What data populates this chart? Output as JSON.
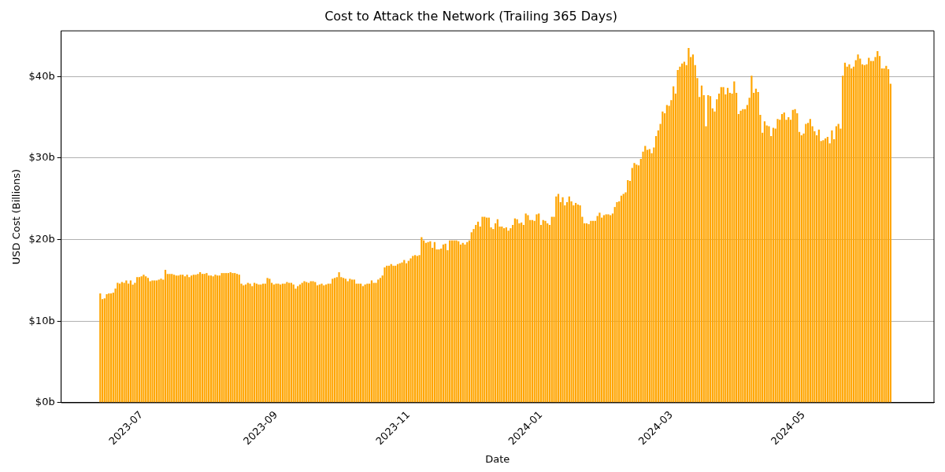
{
  "chart_data": {
    "type": "bar",
    "title": "Cost to Attack the Network (Trailing 365 Days)",
    "xlabel": "Date",
    "ylabel": "USD Cost (Billions)",
    "color": "#ffa500",
    "grid": "y",
    "legend": false,
    "x": [
      "2023-06-12",
      "2023-06-13",
      "2023-06-14",
      "2023-06-15",
      "2023-06-16",
      "2023-06-17",
      "2023-06-18",
      "2023-06-19",
      "2023-06-20",
      "2023-06-21",
      "2023-06-22",
      "2023-06-23",
      "2023-06-24",
      "2023-06-25",
      "2023-06-26",
      "2023-06-27",
      "2023-06-28",
      "2023-06-29",
      "2023-06-30",
      "2023-07-01",
      "2023-07-02",
      "2023-07-03",
      "2023-07-04",
      "2023-07-05",
      "2023-07-06",
      "2023-07-07",
      "2023-07-08",
      "2023-07-09",
      "2023-07-10",
      "2023-07-11",
      "2023-07-12",
      "2023-07-13",
      "2023-07-14",
      "2023-07-15",
      "2023-07-16",
      "2023-07-17",
      "2023-07-18",
      "2023-07-19",
      "2023-07-20",
      "2023-07-21",
      "2023-07-22",
      "2023-07-23",
      "2023-07-24",
      "2023-07-25",
      "2023-07-26",
      "2023-07-27",
      "2023-07-28",
      "2023-07-29",
      "2023-07-30",
      "2023-07-31",
      "2023-08-01",
      "2023-08-02",
      "2023-08-03",
      "2023-08-04",
      "2023-08-05",
      "2023-08-06",
      "2023-08-07",
      "2023-08-08",
      "2023-08-09",
      "2023-08-10",
      "2023-08-11",
      "2023-08-12",
      "2023-08-13",
      "2023-08-14",
      "2023-08-15",
      "2023-08-16",
      "2023-08-17",
      "2023-08-18",
      "2023-08-19",
      "2023-08-20",
      "2023-08-21",
      "2023-08-22",
      "2023-08-23",
      "2023-08-24",
      "2023-08-25",
      "2023-08-26",
      "2023-08-27",
      "2023-08-28",
      "2023-08-29",
      "2023-08-30",
      "2023-08-31",
      "2023-09-01",
      "2023-09-02",
      "2023-09-03",
      "2023-09-04",
      "2023-09-05",
      "2023-09-06",
      "2023-09-07",
      "2023-09-08",
      "2023-09-09",
      "2023-09-10",
      "2023-09-11",
      "2023-09-12",
      "2023-09-13",
      "2023-09-14",
      "2023-09-15",
      "2023-09-16",
      "2023-09-17",
      "2023-09-18",
      "2023-09-19",
      "2023-09-20",
      "2023-09-21",
      "2023-09-22",
      "2023-09-23",
      "2023-09-24",
      "2023-09-25",
      "2023-09-26",
      "2023-09-27",
      "2023-09-28",
      "2023-09-29",
      "2023-09-30",
      "2023-10-01",
      "2023-10-02",
      "2023-10-03",
      "2023-10-04",
      "2023-10-05",
      "2023-10-06",
      "2023-10-07",
      "2023-10-08",
      "2023-10-09",
      "2023-10-10",
      "2023-10-11",
      "2023-10-12",
      "2023-10-13",
      "2023-10-14",
      "2023-10-15",
      "2023-10-16",
      "2023-10-17",
      "2023-10-18",
      "2023-10-19",
      "2023-10-20",
      "2023-10-21",
      "2023-10-22",
      "2023-10-23",
      "2023-10-24",
      "2023-10-25",
      "2023-10-26",
      "2023-10-27",
      "2023-10-28",
      "2023-10-29",
      "2023-10-30",
      "2023-10-31",
      "2023-11-01",
      "2023-11-02",
      "2023-11-03",
      "2023-11-04",
      "2023-11-05",
      "2023-11-06",
      "2023-11-07",
      "2023-11-08",
      "2023-11-09",
      "2023-11-10",
      "2023-11-11",
      "2023-11-12",
      "2023-11-13",
      "2023-11-14",
      "2023-11-15",
      "2023-11-16",
      "2023-11-17",
      "2023-11-18",
      "2023-11-19",
      "2023-11-20",
      "2023-11-21",
      "2023-11-22",
      "2023-11-23",
      "2023-11-24",
      "2023-11-25",
      "2023-11-26",
      "2023-11-27",
      "2023-11-28",
      "2023-11-29",
      "2023-11-30",
      "2023-12-01",
      "2023-12-02",
      "2023-12-03",
      "2023-12-04",
      "2023-12-05",
      "2023-12-06",
      "2023-12-07",
      "2023-12-08",
      "2023-12-09",
      "2023-12-10",
      "2023-12-11",
      "2023-12-12",
      "2023-12-13",
      "2023-12-14",
      "2023-12-15",
      "2023-12-16",
      "2023-12-17",
      "2023-12-18",
      "2023-12-19",
      "2023-12-20",
      "2023-12-21",
      "2023-12-22",
      "2023-12-23",
      "2023-12-24",
      "2023-12-25",
      "2023-12-26",
      "2023-12-27",
      "2023-12-28",
      "2023-12-29",
      "2023-12-30",
      "2023-12-31",
      "2024-01-01",
      "2024-01-02",
      "2024-01-03",
      "2024-01-04",
      "2024-01-05",
      "2024-01-06",
      "2024-01-07",
      "2024-01-08",
      "2024-01-09",
      "2024-01-10",
      "2024-01-11",
      "2024-01-12",
      "2024-01-13",
      "2024-01-14",
      "2024-01-15",
      "2024-01-16",
      "2024-01-17",
      "2024-01-18",
      "2024-01-19",
      "2024-01-20",
      "2024-01-21",
      "2024-01-22",
      "2024-01-23",
      "2024-01-24",
      "2024-01-25",
      "2024-01-26",
      "2024-01-27",
      "2024-01-28",
      "2024-01-29",
      "2024-01-30",
      "2024-01-31",
      "2024-02-01",
      "2024-02-02",
      "2024-02-03",
      "2024-02-04",
      "2024-02-05",
      "2024-02-06",
      "2024-02-07",
      "2024-02-08",
      "2024-02-09",
      "2024-02-10",
      "2024-02-11",
      "2024-02-12",
      "2024-02-13",
      "2024-02-14",
      "2024-02-15",
      "2024-02-16",
      "2024-02-17",
      "2024-02-18",
      "2024-02-19",
      "2024-02-20",
      "2024-02-21",
      "2024-02-22",
      "2024-02-23",
      "2024-02-24",
      "2024-02-25",
      "2024-02-26",
      "2024-02-27",
      "2024-02-28",
      "2024-02-29",
      "2024-03-01",
      "2024-03-02",
      "2024-03-03",
      "2024-03-04",
      "2024-03-05",
      "2024-03-06",
      "2024-03-07",
      "2024-03-08",
      "2024-03-09",
      "2024-03-10",
      "2024-03-11",
      "2024-03-12",
      "2024-03-13",
      "2024-03-14",
      "2024-03-15",
      "2024-03-16",
      "2024-03-17",
      "2024-03-18",
      "2024-03-19",
      "2024-03-20",
      "2024-03-21",
      "2024-03-22",
      "2024-03-23",
      "2024-03-24",
      "2024-03-25",
      "2024-03-26",
      "2024-03-27",
      "2024-03-28",
      "2024-03-29",
      "2024-03-30",
      "2024-03-31",
      "2024-04-01",
      "2024-04-02",
      "2024-04-03",
      "2024-04-04",
      "2024-04-05",
      "2024-04-06",
      "2024-04-07",
      "2024-04-08",
      "2024-04-09",
      "2024-04-10",
      "2024-04-11",
      "2024-04-12",
      "2024-04-13",
      "2024-04-14",
      "2024-04-15",
      "2024-04-16",
      "2024-04-17",
      "2024-04-18",
      "2024-04-19",
      "2024-04-20",
      "2024-04-21",
      "2024-04-22",
      "2024-04-23",
      "2024-04-24",
      "2024-04-25",
      "2024-04-26",
      "2024-04-27",
      "2024-04-28",
      "2024-04-29",
      "2024-04-30",
      "2024-05-01",
      "2024-05-02",
      "2024-05-03",
      "2024-05-04",
      "2024-05-05",
      "2024-05-06",
      "2024-05-07",
      "2024-05-08",
      "2024-05-09",
      "2024-05-10",
      "2024-05-11",
      "2024-05-12",
      "2024-05-13",
      "2024-05-14",
      "2024-05-15",
      "2024-05-16",
      "2024-05-17",
      "2024-05-18",
      "2024-05-19",
      "2024-05-20",
      "2024-05-21",
      "2024-05-22",
      "2024-05-23",
      "2024-05-24",
      "2024-05-25",
      "2024-05-26",
      "2024-05-27",
      "2024-05-28",
      "2024-05-29",
      "2024-05-30",
      "2024-05-31",
      "2024-06-01",
      "2024-06-02",
      "2024-06-03",
      "2024-06-04",
      "2024-06-05",
      "2024-06-06",
      "2024-06-07",
      "2024-06-08",
      "2024-06-09",
      "2024-06-10"
    ],
    "values": [
      13.4,
      12.7,
      12.8,
      13.3,
      13.4,
      13.4,
      13.5,
      14.0,
      14.7,
      14.6,
      14.8,
      14.7,
      15.0,
      14.6,
      15.0,
      14.5,
      14.7,
      15.4,
      15.4,
      15.5,
      15.7,
      15.5,
      15.3,
      14.9,
      15.0,
      15.0,
      15.0,
      15.1,
      15.2,
      15.1,
      16.3,
      15.8,
      15.8,
      15.8,
      15.7,
      15.6,
      15.6,
      15.7,
      15.7,
      15.5,
      15.7,
      15.4,
      15.6,
      15.7,
      15.7,
      15.8,
      16.0,
      15.8,
      15.8,
      15.9,
      15.6,
      15.6,
      15.5,
      15.7,
      15.6,
      15.6,
      15.9,
      15.9,
      15.9,
      15.9,
      16.0,
      15.9,
      15.9,
      15.8,
      15.7,
      14.6,
      14.4,
      14.5,
      14.7,
      14.6,
      14.3,
      14.7,
      14.6,
      14.5,
      14.5,
      14.6,
      14.6,
      15.3,
      15.2,
      14.7,
      14.5,
      14.6,
      14.6,
      14.5,
      14.6,
      14.6,
      14.8,
      14.7,
      14.7,
      14.5,
      14.0,
      14.3,
      14.5,
      14.7,
      14.9,
      14.8,
      14.7,
      14.9,
      14.9,
      14.8,
      14.4,
      14.5,
      14.6,
      14.4,
      14.5,
      14.6,
      14.6,
      15.2,
      15.3,
      15.4,
      16.0,
      15.4,
      15.3,
      15.2,
      14.9,
      15.2,
      15.1,
      15.1,
      14.6,
      14.6,
      14.6,
      14.3,
      14.5,
      14.6,
      14.6,
      15.0,
      14.7,
      14.7,
      15.1,
      15.3,
      15.6,
      16.6,
      16.8,
      16.8,
      17.0,
      16.8,
      16.8,
      17.0,
      17.1,
      17.2,
      17.5,
      17.1,
      17.4,
      17.7,
      18.0,
      18.1,
      18.0,
      18.1,
      20.3,
      19.9,
      19.6,
      19.7,
      19.8,
      19.0,
      19.7,
      18.8,
      18.8,
      18.9,
      19.4,
      19.5,
      18.7,
      19.9,
      19.9,
      19.9,
      19.9,
      19.8,
      19.4,
      19.6,
      19.4,
      19.7,
      19.9,
      20.9,
      21.3,
      21.8,
      22.2,
      21.6,
      22.8,
      22.8,
      22.7,
      22.7,
      21.5,
      21.3,
      22.0,
      22.5,
      21.6,
      21.6,
      21.4,
      21.5,
      21.1,
      21.4,
      21.8,
      22.6,
      22.5,
      22.0,
      22.1,
      21.8,
      23.2,
      23.0,
      22.4,
      22.4,
      22.3,
      23.1,
      23.2,
      21.8,
      22.4,
      22.3,
      22.0,
      21.8,
      22.8,
      22.8,
      25.3,
      25.6,
      24.6,
      25.2,
      24.2,
      24.6,
      25.3,
      24.7,
      24.2,
      24.5,
      24.3,
      24.2,
      22.8,
      22.0,
      22.0,
      21.9,
      22.3,
      22.3,
      22.3,
      22.9,
      23.3,
      22.7,
      23.0,
      23.1,
      23.1,
      23.0,
      23.2,
      24.0,
      24.6,
      24.7,
      25.4,
      25.6,
      25.8,
      27.3,
      27.2,
      28.8,
      29.4,
      29.2,
      29.1,
      29.9,
      30.8,
      31.5,
      31.0,
      31.1,
      30.6,
      31.3,
      32.7,
      33.4,
      34.2,
      35.7,
      35.5,
      36.5,
      36.4,
      37.1,
      38.8,
      37.9,
      40.8,
      41.2,
      41.6,
      41.8,
      41.4,
      43.5,
      42.4,
      42.7,
      41.4,
      39.8,
      37.5,
      38.9,
      37.7,
      33.9,
      37.7,
      37.6,
      36.1,
      35.7,
      37.2,
      37.9,
      38.7,
      38.7,
      37.8,
      38.6,
      38.0,
      37.9,
      39.4,
      38.0,
      35.4,
      35.8,
      36.0,
      36.0,
      36.5,
      37.4,
      40.1,
      38.0,
      38.5,
      38.1,
      35.3,
      33.1,
      34.5,
      34.0,
      33.9,
      32.7,
      33.7,
      33.6,
      34.8,
      34.7,
      35.4,
      35.6,
      34.7,
      35.0,
      34.7,
      35.9,
      36.0,
      35.5,
      33.2,
      32.8,
      33.0,
      34.2,
      34.3,
      34.8,
      33.9,
      33.3,
      32.8,
      33.5,
      32.1,
      32.2,
      32.4,
      32.6,
      31.8,
      33.4,
      32.3,
      33.9,
      34.2,
      33.6,
      40.1,
      41.7,
      41.2,
      41.5,
      41.0,
      41.2,
      42.0,
      42.7,
      42.2,
      41.5,
      41.4,
      41.5,
      42.3,
      41.9,
      41.9,
      42.4,
      43.1,
      42.5,
      41.0,
      41.0,
      41.3,
      40.9,
      39.1
    ],
    "xlim": [
      "2023-05-25",
      "2024-06-30"
    ],
    "xticks": [
      "2023-07",
      "2023-09",
      "2023-11",
      "2024-01",
      "2024-03",
      "2024-05"
    ],
    "ylim": [
      0,
      45.6
    ],
    "yticks": [
      {
        "value": 0,
        "label": "$0b"
      },
      {
        "value": 10,
        "label": "$10b"
      },
      {
        "value": 20,
        "label": "$20b"
      },
      {
        "value": 30,
        "label": "$30b"
      },
      {
        "value": 40,
        "label": "$40b"
      }
    ]
  }
}
